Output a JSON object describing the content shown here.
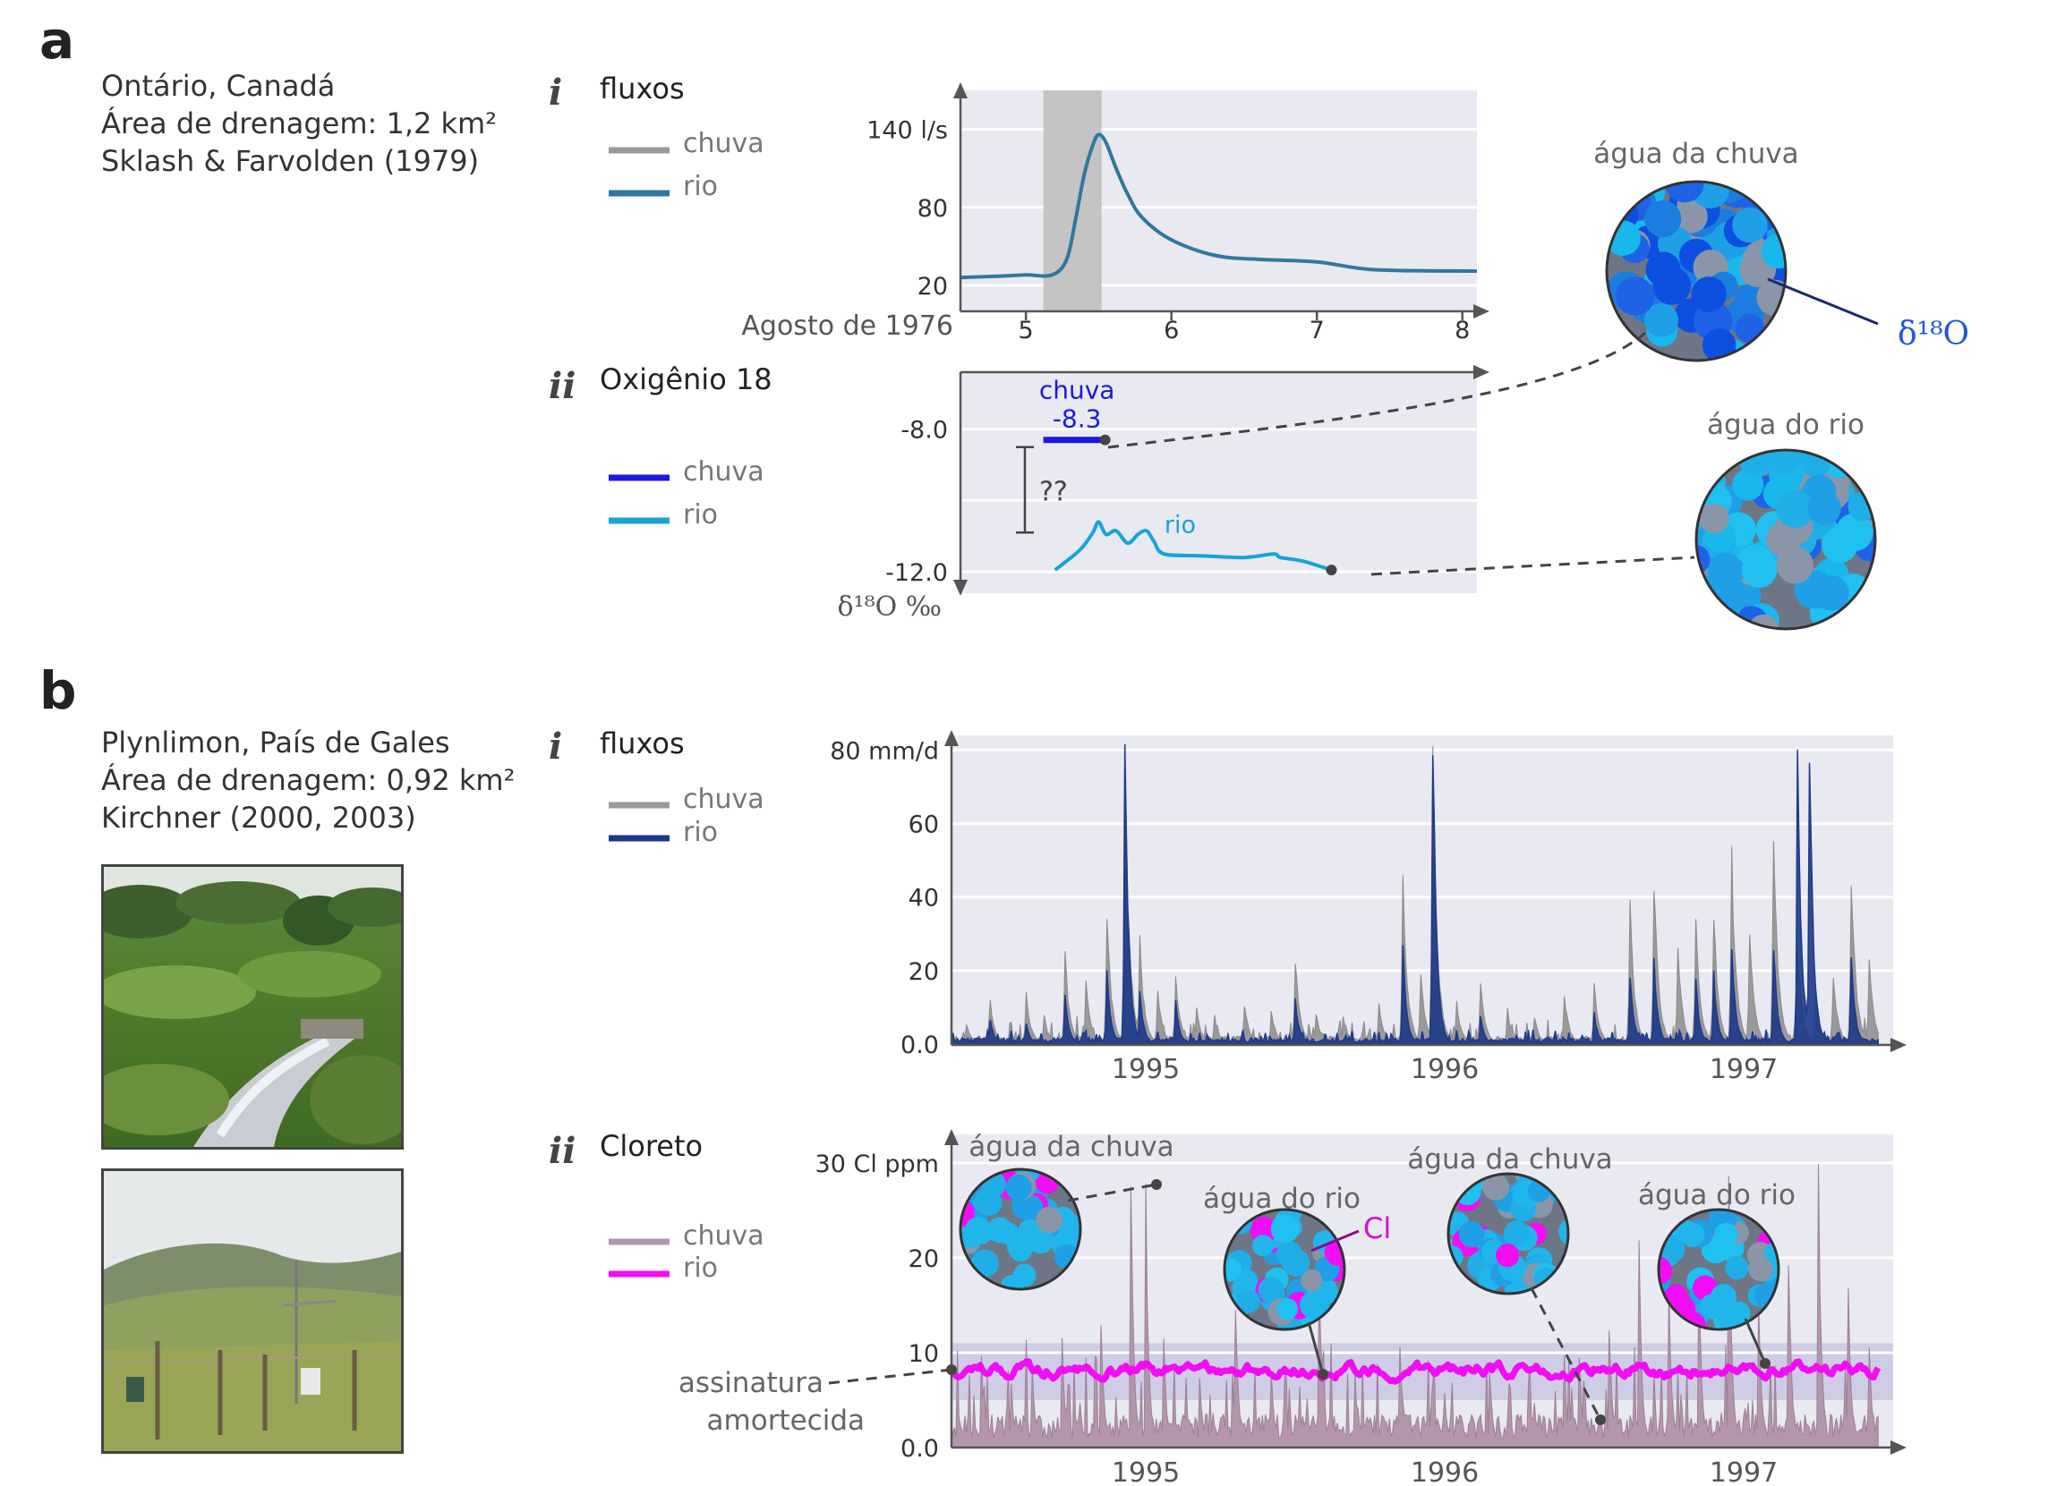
{
  "panels": {
    "a": {
      "letter": "a",
      "info": [
        "Ontário, Canadá",
        "Área de drenagem: 1,2 km²",
        "Sklash & Farvolden (1979)"
      ],
      "i": {
        "roman": "i",
        "title": "fluxos",
        "legend": [
          {
            "label": "chuva",
            "color": "#9a9a9a"
          },
          {
            "label": "rio",
            "color": "#2f789f"
          }
        ]
      },
      "ii": {
        "roman": "ii",
        "title": "Oxigênio 18",
        "legend": [
          {
            "label": "chuva",
            "color": "#1a1adb"
          },
          {
            "label": "rio",
            "color": "#17a3d8"
          }
        ]
      },
      "rain_circle_label": "água da chuva",
      "river_circle_label": "água do rio",
      "isotope_label": "δ¹⁸O"
    },
    "b": {
      "letter": "b",
      "info": [
        "Plynlimon, País de Gales",
        "Área de drenagem: 0,92 km²",
        "Kirchner (2000, 2003)"
      ],
      "i": {
        "roman": "i",
        "title": "fluxos",
        "legend": [
          {
            "label": "chuva",
            "color": "#9a9a9a"
          },
          {
            "label": "rio",
            "color": "#1d3a8a"
          }
        ]
      },
      "ii": {
        "roman": "ii",
        "title": "Cloreto",
        "legend": [
          {
            "label": "chuva",
            "color": "#b396ad"
          },
          {
            "label": "rio",
            "color": "#f20df2"
          }
        ]
      },
      "bubble_labels": [
        "água da chuva",
        "água do rio",
        "água da chuva",
        "água do rio"
      ],
      "cl_label": "Cl",
      "damped_label": [
        "assinatura",
        "amortecida"
      ]
    }
  },
  "chart_data": [
    {
      "id": "a-i",
      "type": "line",
      "xlabel": "Agosto de 1976",
      "x_ticks": [
        5,
        6,
        7,
        8
      ],
      "y_ticks": [
        {
          "value": 20,
          "label": "20"
        },
        {
          "value": 80,
          "label": "80"
        },
        {
          "value": 140,
          "label": "140 l/s"
        }
      ],
      "xlim": [
        4.55,
        8.1
      ],
      "ylim": [
        0,
        170
      ],
      "rain_band": [
        5.12,
        5.52
      ],
      "series": [
        {
          "name": "rio",
          "color": "#2f789f",
          "x": [
            4.55,
            4.8,
            5.0,
            5.18,
            5.28,
            5.34,
            5.4,
            5.46,
            5.5,
            5.55,
            5.62,
            5.7,
            5.8,
            6.0,
            6.3,
            6.6,
            7.0,
            7.4,
            8.1
          ],
          "y": [
            26,
            27,
            28,
            28,
            40,
            70,
            105,
            128,
            136,
            130,
            110,
            90,
            72,
            55,
            43,
            40,
            38,
            32,
            31
          ]
        }
      ]
    },
    {
      "id": "a-ii",
      "type": "line",
      "ylabel": "δ¹⁸O ‰",
      "y_ticks": [
        {
          "value": -8.0,
          "label": "-8.0"
        },
        {
          "value": -12.0,
          "label": "-12.0"
        }
      ],
      "xlim": [
        4.55,
        8.1
      ],
      "ylim": [
        -12.6,
        -6.4
      ],
      "rain": {
        "label": "chuva",
        "value_label": "-8.3",
        "value": -8.3,
        "x": [
          5.12,
          5.52
        ]
      },
      "bracket_label": "??",
      "series": [
        {
          "name": "rio",
          "color": "#17a3d8",
          "x": [
            5.2,
            5.28,
            5.38,
            5.46,
            5.5,
            5.55,
            5.62,
            5.7,
            5.77,
            5.83,
            5.88,
            5.95,
            6.2,
            6.5,
            6.7,
            6.75,
            6.9,
            7.1
          ],
          "y": [
            -11.95,
            -11.7,
            -11.35,
            -10.9,
            -10.6,
            -10.95,
            -10.85,
            -11.2,
            -10.95,
            -10.85,
            -11.15,
            -11.5,
            -11.55,
            -11.6,
            -11.5,
            -11.6,
            -11.7,
            -11.95
          ]
        }
      ]
    },
    {
      "id": "b-i",
      "type": "area",
      "x_ticks": [
        {
          "value": 1995,
          "label": "1995"
        },
        {
          "value": 1996,
          "label": "1996"
        },
        {
          "value": 1997,
          "label": "1997"
        }
      ],
      "y_ticks": [
        {
          "value": 0,
          "label": "0.0"
        },
        {
          "value": 20,
          "label": "20"
        },
        {
          "value": 40,
          "label": "40"
        },
        {
          "value": 60,
          "label": "60"
        },
        {
          "value": 80,
          "label": "80 mm/d"
        }
      ],
      "xlim": [
        1994.35,
        1997.5
      ],
      "ylim": [
        0,
        84
      ],
      "series": [
        {
          "name": "chuva",
          "color": "#9a9a9a",
          "x_start": 1994.35,
          "x_end": 1997.45,
          "peaks": [
            [
              1994.4,
              6
            ],
            [
              1994.48,
              12
            ],
            [
              1994.6,
              15
            ],
            [
              1994.66,
              8
            ],
            [
              1994.73,
              26
            ],
            [
              1994.8,
              18
            ],
            [
              1994.87,
              38
            ],
            [
              1994.93,
              85
            ],
            [
              1994.98,
              30
            ],
            [
              1995.04,
              16
            ],
            [
              1995.1,
              20
            ],
            [
              1995.17,
              10
            ],
            [
              1995.23,
              8
            ],
            [
              1995.33,
              12
            ],
            [
              1995.42,
              10
            ],
            [
              1995.5,
              25
            ],
            [
              1995.57,
              9
            ],
            [
              1995.66,
              8
            ],
            [
              1995.78,
              12
            ],
            [
              1995.86,
              50
            ],
            [
              1995.92,
              22
            ],
            [
              1995.96,
              85
            ],
            [
              1996.04,
              12
            ],
            [
              1996.12,
              18
            ],
            [
              1996.21,
              10
            ],
            [
              1996.3,
              8
            ],
            [
              1996.4,
              15
            ],
            [
              1996.5,
              18
            ],
            [
              1996.62,
              40
            ],
            [
              1996.7,
              48
            ],
            [
              1996.78,
              28
            ],
            [
              1996.84,
              36
            ],
            [
              1996.9,
              38
            ],
            [
              1996.96,
              55
            ],
            [
              1997.02,
              34
            ],
            [
              1997.1,
              64
            ],
            [
              1997.18,
              30
            ],
            [
              1997.24,
              15
            ],
            [
              1997.3,
              20
            ],
            [
              1997.36,
              50
            ],
            [
              1997.42,
              25
            ]
          ]
        },
        {
          "name": "rio",
          "color": "#1d3a8a",
          "x_start": 1994.35,
          "x_end": 1997.45,
          "peaks": [
            [
              1994.48,
              7
            ],
            [
              1994.6,
              6
            ],
            [
              1994.73,
              14
            ],
            [
              1994.87,
              22
            ],
            [
              1994.93,
              90
            ],
            [
              1994.98,
              16
            ],
            [
              1995.1,
              12
            ],
            [
              1995.5,
              14
            ],
            [
              1995.86,
              28
            ],
            [
              1995.96,
              90
            ],
            [
              1996.12,
              8
            ],
            [
              1996.5,
              9
            ],
            [
              1996.62,
              20
            ],
            [
              1996.7,
              24
            ],
            [
              1996.84,
              18
            ],
            [
              1996.9,
              20
            ],
            [
              1996.96,
              30
            ],
            [
              1997.1,
              30
            ],
            [
              1997.18,
              90
            ],
            [
              1997.22,
              90
            ],
            [
              1997.36,
              26
            ]
          ]
        }
      ]
    },
    {
      "id": "b-ii",
      "type": "area",
      "x_ticks": [
        {
          "value": 1995,
          "label": "1995"
        },
        {
          "value": 1996,
          "label": "1996"
        },
        {
          "value": 1997,
          "label": "1997"
        }
      ],
      "y_ticks": [
        {
          "value": 0,
          "label": "0.0"
        },
        {
          "value": 10,
          "label": "10"
        },
        {
          "value": 20,
          "label": "20"
        },
        {
          "value": 30,
          "label": "30 Cl ppm"
        }
      ],
      "xlim": [
        1994.35,
        1997.5
      ],
      "ylim": [
        0,
        33
      ],
      "band": [
        5,
        11
      ],
      "series": [
        {
          "name": "chuva",
          "color": "#b396ad",
          "x_start": 1994.35,
          "x_end": 1997.45,
          "peaks": [
            [
              1994.45,
              10
            ],
            [
              1994.55,
              7
            ],
            [
              1994.62,
              9
            ],
            [
              1994.72,
              12
            ],
            [
              1994.85,
              14
            ],
            [
              1994.95,
              30
            ],
            [
              1995.0,
              28
            ],
            [
              1995.06,
              12
            ],
            [
              1995.18,
              8
            ],
            [
              1995.3,
              16
            ],
            [
              1995.42,
              9
            ],
            [
              1995.58,
              20
            ],
            [
              1995.7,
              8
            ],
            [
              1995.85,
              12
            ],
            [
              1996.0,
              6
            ],
            [
              1996.15,
              9
            ],
            [
              1996.3,
              5
            ],
            [
              1996.45,
              10
            ],
            [
              1996.55,
              14
            ],
            [
              1996.65,
              22
            ],
            [
              1996.75,
              18
            ],
            [
              1996.85,
              20
            ],
            [
              1996.95,
              30
            ],
            [
              1997.05,
              16
            ],
            [
              1997.15,
              22
            ],
            [
              1997.25,
              30
            ],
            [
              1997.35,
              18
            ],
            [
              1997.42,
              12
            ]
          ]
        },
        {
          "name": "rio",
          "color": "#f20df2",
          "x_start": 1994.35,
          "x_end": 1997.45,
          "mean": 8.2,
          "amplitude": 1.4
        }
      ]
    }
  ]
}
